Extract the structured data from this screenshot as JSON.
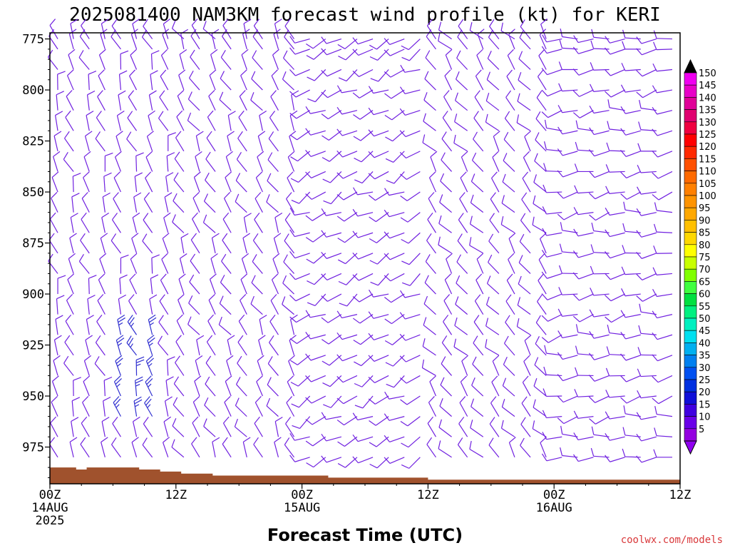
{
  "chart_data": {
    "type": "wind-profile",
    "title": "2025081400 NAM3KM forecast wind profile (kt) for KERI",
    "xlabel": "Forecast Time (UTC)",
    "ylabel": "",
    "credit": "coolwx.com/models",
    "y_axis": {
      "ticks": [
        "775",
        "800",
        "825",
        "850",
        "875",
        "900",
        "925",
        "950",
        "975"
      ],
      "values": [
        775,
        800,
        825,
        850,
        875,
        900,
        925,
        950,
        975
      ],
      "ylim": [
        772,
        993
      ]
    },
    "x_axis": {
      "range_hours": [
        0,
        60
      ],
      "ticks": [
        {
          "hour": 0,
          "lines": [
            "00Z",
            "14AUG",
            "2025"
          ]
        },
        {
          "hour": 12,
          "lines": [
            "12Z"
          ]
        },
        {
          "hour": 24,
          "lines": [
            "00Z",
            "15AUG"
          ]
        },
        {
          "hour": 36,
          "lines": [
            "12Z"
          ]
        },
        {
          "hour": 48,
          "lines": [
            "00Z",
            "16AUG"
          ]
        },
        {
          "hour": 60,
          "lines": [
            "12Z"
          ]
        }
      ]
    },
    "colorbar": {
      "labels": [
        "150",
        "145",
        "140",
        "135",
        "130",
        "125",
        "120",
        "115",
        "110",
        "105",
        "100",
        "95",
        "90",
        "85",
        "80",
        "75",
        "70",
        "65",
        "60",
        "55",
        "50",
        "45",
        "40",
        "35",
        "30",
        "25",
        "20",
        "15",
        "10",
        "5"
      ],
      "colors": [
        "#f000f0",
        "#e800c8",
        "#e00098",
        "#e00070",
        "#f00040",
        "#ff0000",
        "#ff2a00",
        "#ff5000",
        "#ff6a00",
        "#ff8000",
        "#ff9400",
        "#ffa800",
        "#ffc000",
        "#ffd800",
        "#ffff00",
        "#c8ff00",
        "#80ff00",
        "#40ff40",
        "#00e040",
        "#00f080",
        "#00f0c0",
        "#00e0f0",
        "#00b0f0",
        "#0080f0",
        "#0050f0",
        "#0030e0",
        "#1010d8",
        "#4000e0",
        "#6a00e8",
        "#9400e0"
      ]
    },
    "terrain": {
      "color": "#a0522d",
      "hours": [
        0,
        1.5,
        2.5,
        3.5,
        6.5,
        8.5,
        10.5,
        12.5,
        15.5,
        24.5,
        26.5,
        28.5,
        31.5,
        33,
        36,
        42.5,
        44,
        46,
        52,
        60
      ],
      "pressures": [
        985,
        985,
        986,
        985,
        985,
        986,
        987,
        988,
        989,
        989,
        990,
        990,
        990,
        990,
        991,
        991,
        991,
        991,
        991,
        991
      ]
    },
    "barb_grid": {
      "hour_step": 1.5,
      "levels": [
        775,
        780,
        790,
        800,
        810,
        820,
        830,
        840,
        850,
        860,
        870,
        880,
        890,
        900,
        910,
        920,
        930,
        940,
        950,
        960,
        970,
        980
      ],
      "regimes": [
        {
          "hours": [
            0,
            12
          ],
          "direction_deg": 340,
          "speed_kt": 10
        },
        {
          "hours": [
            12,
            24
          ],
          "direction_deg": 330,
          "speed_kt": 12
        },
        {
          "hours": [
            24,
            36
          ],
          "direction_deg": 240,
          "speed_kt": 12
        },
        {
          "hours": [
            36,
            48
          ],
          "direction_deg": 320,
          "speed_kt": 10
        },
        {
          "hours": [
            48,
            60
          ],
          "direction_deg": 260,
          "speed_kt": 10
        }
      ],
      "strong_zone": {
        "hours": [
          6,
          10
        ],
        "levels": [
          920,
          960
        ],
        "speed_kt": 25
      },
      "barb_color": "#7020e0",
      "strong_color": "#3030d0"
    }
  }
}
